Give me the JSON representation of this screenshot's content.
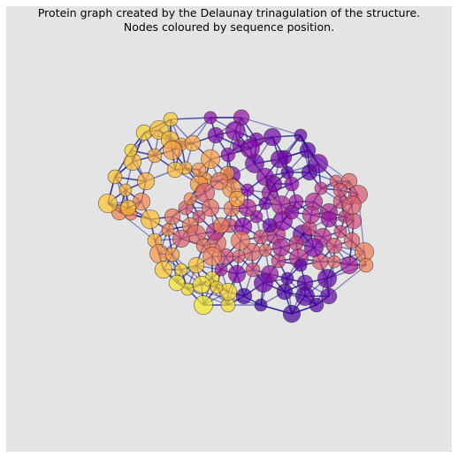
{
  "title": {
    "line1": "Protein graph created by the Delaunay trinagulation of the structure.",
    "line2": "Nodes coloured by sequence position."
  },
  "colormap": "plasma",
  "edge_color": "#00008b",
  "background_color": "#e4e4e4"
}
